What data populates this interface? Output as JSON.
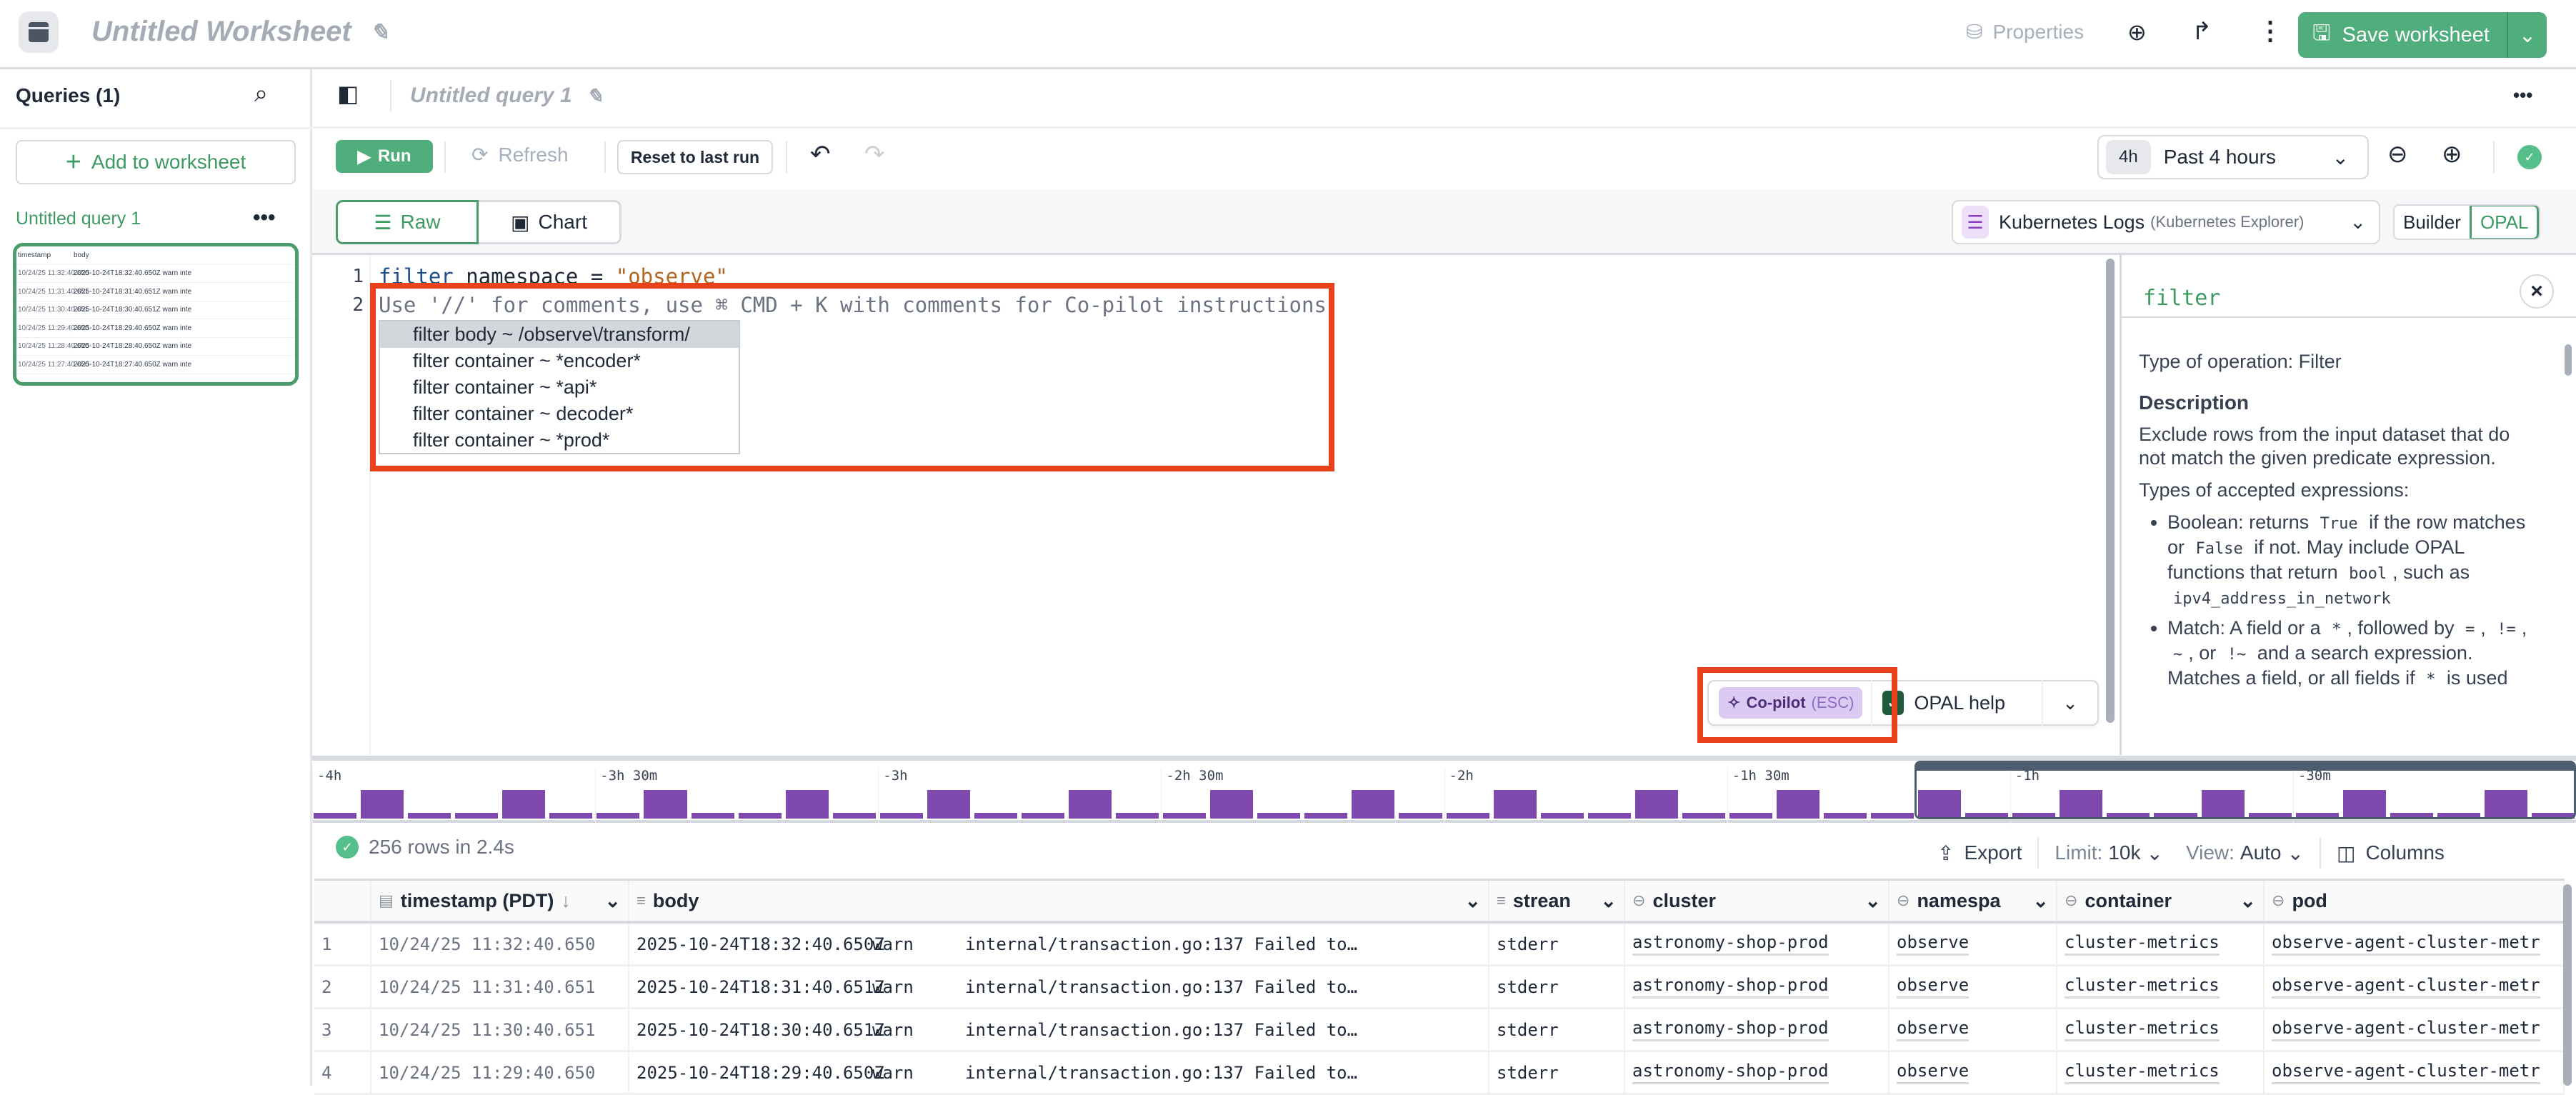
{
  "header": {
    "title": "Untitled Worksheet",
    "properties": "Properties",
    "save": "Save worksheet"
  },
  "sidebar": {
    "queries_label": "Queries (1)",
    "add_button": "Add to worksheet",
    "query_item": "Untitled query 1",
    "thumbnail": {
      "columns": [
        "timestamp",
        "body"
      ],
      "rows": [
        [
          "10/24/25 11:32:40.650",
          "2025-10-24T18:32:40.650Z warn inte"
        ],
        [
          "10/24/25 11:31:40.651",
          "2025-10-24T18:31:40.651Z warn inte"
        ],
        [
          "10/24/25 11:30:40.651",
          "2025-10-24T18:30:40.651Z warn inte"
        ],
        [
          "10/24/25 11:29:40.650",
          "2025-10-24T18:29:40.650Z warn inte"
        ],
        [
          "10/24/25 11:28:40.650",
          "2025-10-24T18:28:40.650Z warn inte"
        ],
        [
          "10/24/25 11:27:40.650",
          "2025-10-24T18:27:40.650Z warn inte"
        ]
      ]
    }
  },
  "query": {
    "title": "Untitled query 1",
    "run": "Run",
    "refresh": "Refresh",
    "reset": "Reset to last run",
    "time_chip": "4h",
    "time_label": "Past 4 hours",
    "tabs": {
      "raw": "Raw",
      "chart": "Chart"
    },
    "dataset": {
      "name": "Kubernetes Logs",
      "source": "(Kubernetes Explorer)"
    },
    "mode": {
      "builder": "Builder",
      "opal": "OPAL",
      "active": "OPAL"
    }
  },
  "editor": {
    "line_numbers": [
      "1",
      "2"
    ],
    "line1": {
      "keyword": "filter",
      "rest": " namespace = ",
      "string": "\"observe\""
    },
    "hint": "Use '//' for comments, use ⌘ CMD + K with comments for Co-pilot instructions",
    "suggestions": [
      "filter body ~ /observe\\/transform/",
      "filter container ~ *encoder*",
      "filter container ~ *api*",
      "filter container ~ decoder*",
      "filter container ~ *prod*"
    ],
    "selected_suggestion": 0,
    "copilot": {
      "label": "Co-pilot",
      "shortcut": "(ESC)"
    },
    "opal_help": "OPAL help",
    "highlight_color": "#e9421d"
  },
  "help": {
    "title": "filter",
    "type_line": "Type of operation: Filter",
    "description_heading": "Description",
    "description": "Exclude rows from the input dataset that do not match the given predicate expression.",
    "accepted": "Types of accepted expressions:",
    "bullets": [
      [
        {
          "t": "Boolean: returns "
        },
        {
          "c": "True"
        },
        {
          "t": " if the row matches or "
        },
        {
          "c": "False"
        },
        {
          "t": " if not. May include OPAL functions that return "
        },
        {
          "c": "bool"
        },
        {
          "t": ", such as "
        },
        {
          "c": "ipv4_address_in_network"
        }
      ],
      [
        {
          "t": "Match: A field or a "
        },
        {
          "c": "*"
        },
        {
          "t": ", followed by "
        },
        {
          "c": "="
        },
        {
          "t": ", "
        },
        {
          "c": "!="
        },
        {
          "t": ", "
        },
        {
          "c": "~"
        },
        {
          "t": ", or "
        },
        {
          "c": "!~"
        },
        {
          "t": " and a search expression. Matches a field, or all fields if "
        },
        {
          "c": "*"
        },
        {
          "t": " is used"
        }
      ]
    ]
  },
  "histogram": {
    "ticks": [
      "-4h",
      "-3h 30m",
      "-3h",
      "-2h 30m",
      "-2h",
      "-1h 30m",
      "-1h",
      "-30m"
    ],
    "pattern_relative_heights": [
      0.2,
      1,
      0.2,
      0.2,
      1,
      0.2,
      0.2,
      1,
      0.2,
      0.2,
      1,
      0.2,
      0.2,
      1,
      0.2,
      0.2,
      1,
      0.2,
      0.2,
      1,
      0.2,
      0.2,
      1,
      0.2,
      0.2,
      1,
      0.2,
      0.2,
      1,
      0.2,
      0.2,
      1,
      0.2,
      0.2,
      1,
      0.2,
      0.2,
      1,
      0.2,
      0.2,
      1,
      0.2,
      0.2,
      1,
      0.2,
      0.2,
      1,
      0.2
    ],
    "bar_color": "#7f48ad"
  },
  "results": {
    "status": "256 rows in 2.4s",
    "export": "Export",
    "limit_label": "Limit:",
    "limit_value": "10k",
    "view_label": "View:",
    "view_value": "Auto",
    "columns": "Columns",
    "table": {
      "headers": [
        "timestamp (PDT)",
        "body",
        "strean",
        "cluster",
        "namespa",
        "container",
        "pod"
      ],
      "rows": [
        [
          "1",
          "10/24/25 11:32:40.650",
          "2025-10-24T18:32:40.650Z",
          "warn",
          "internal/transaction.go:137 Failed to…",
          "stderr",
          "astronomy-shop-prod",
          "observe",
          "cluster-metrics",
          "observe-agent-cluster-metr"
        ],
        [
          "2",
          "10/24/25 11:31:40.651",
          "2025-10-24T18:31:40.651Z",
          "warn",
          "internal/transaction.go:137 Failed to…",
          "stderr",
          "astronomy-shop-prod",
          "observe",
          "cluster-metrics",
          "observe-agent-cluster-metr"
        ],
        [
          "3",
          "10/24/25 11:30:40.651",
          "2025-10-24T18:30:40.651Z",
          "warn",
          "internal/transaction.go:137 Failed to…",
          "stderr",
          "astronomy-shop-prod",
          "observe",
          "cluster-metrics",
          "observe-agent-cluster-metr"
        ],
        [
          "4",
          "10/24/25 11:29:40.650",
          "2025-10-24T18:29:40.650Z",
          "warn",
          "internal/transaction.go:137 Failed to…",
          "stderr",
          "astronomy-shop-prod",
          "observe",
          "cluster-metrics",
          "observe-agent-cluster-metr"
        ]
      ]
    }
  }
}
